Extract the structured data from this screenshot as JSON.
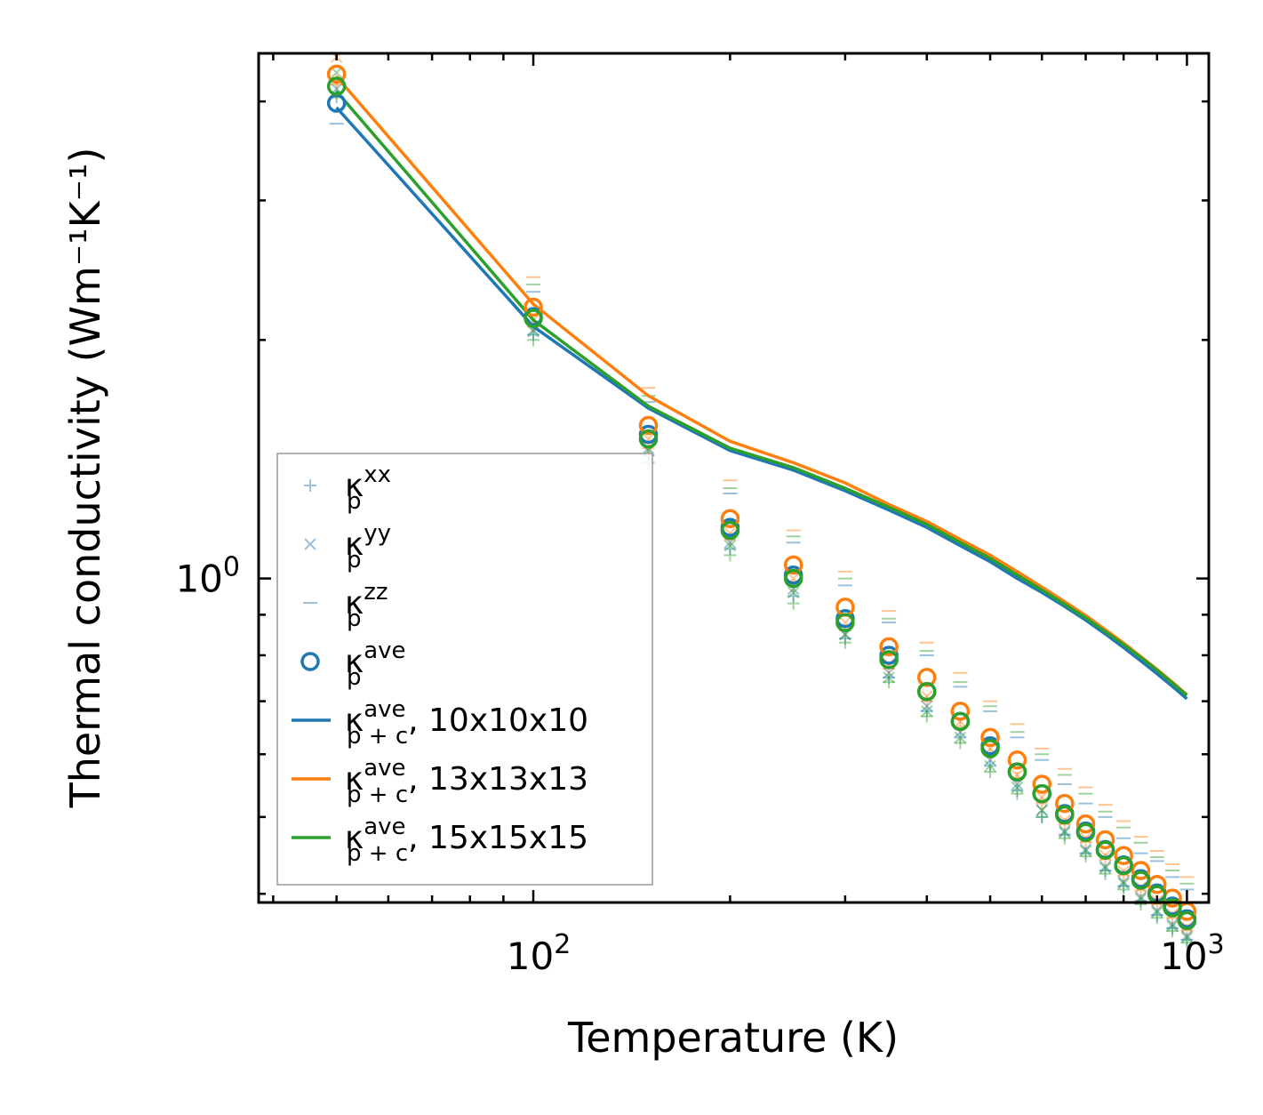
{
  "chart_data": {
    "type": "scatter",
    "title": "",
    "xlabel": "Temperature (K)",
    "ylabel": "Thermal conductivity (Wm⁻¹K⁻¹)",
    "xscale": "log",
    "yscale": "log",
    "xlim": [
      38,
      1080
    ],
    "ylim": [
      0.39,
      4.6
    ],
    "x_ticks": [
      {
        "value": 100,
        "base": "10",
        "exp": "2"
      },
      {
        "value": 1000,
        "base": "10",
        "exp": "3"
      }
    ],
    "y_ticks": [
      {
        "value": 1,
        "base": "10",
        "exp": "0"
      }
    ],
    "grid": false,
    "legend_position": "lower-left",
    "x": [
      50,
      100,
      150,
      200,
      250,
      300,
      350,
      400,
      450,
      500,
      550,
      600,
      650,
      700,
      750,
      800,
      850,
      900,
      950,
      1000
    ],
    "configs": [
      {
        "name": "10x10x10",
        "color": "#1f77b4",
        "kxx": [
          4.05,
          2.03,
          1.43,
          1.09,
          0.95,
          0.84,
          0.75,
          0.68,
          0.63,
          0.58,
          0.54,
          0.5,
          0.475,
          0.45,
          0.428,
          0.409,
          0.392,
          0.376,
          0.362,
          0.35
        ],
        "kyy": [
          4.15,
          2.06,
          1.46,
          1.11,
          0.97,
          0.85,
          0.76,
          0.69,
          0.64,
          0.59,
          0.55,
          0.51,
          0.48,
          0.455,
          0.433,
          0.414,
          0.396,
          0.381,
          0.366,
          0.354
        ],
        "kzz": [
          3.75,
          2.3,
          1.67,
          1.28,
          1.11,
          0.98,
          0.88,
          0.8,
          0.73,
          0.68,
          0.63,
          0.59,
          0.55,
          0.52,
          0.5,
          0.47,
          0.45,
          0.44,
          0.42,
          0.405
        ],
        "kave": [
          3.98,
          2.14,
          1.52,
          1.16,
          1.01,
          0.89,
          0.8,
          0.72,
          0.66,
          0.615,
          0.57,
          0.535,
          0.505,
          0.48,
          0.455,
          0.435,
          0.418,
          0.401,
          0.386,
          0.372
        ],
        "kpc": [
          3.93,
          2.08,
          1.64,
          1.45,
          1.37,
          1.29,
          1.22,
          1.16,
          1.1,
          1.05,
          1.0,
          0.96,
          0.922,
          0.886,
          0.851,
          0.818,
          0.787,
          0.758,
          0.731,
          0.705
        ]
      },
      {
        "name": "13x13x13",
        "color": "#ff7f0e",
        "kxx": [
          4.25,
          2.08,
          1.46,
          1.12,
          0.98,
          0.86,
          0.77,
          0.7,
          0.65,
          0.6,
          0.56,
          0.52,
          0.49,
          0.465,
          0.442,
          0.422,
          0.404,
          0.388,
          0.373,
          0.36
        ],
        "kyy": [
          4.55,
          2.12,
          1.5,
          1.14,
          1.0,
          0.88,
          0.78,
          0.71,
          0.66,
          0.61,
          0.565,
          0.53,
          0.495,
          0.47,
          0.447,
          0.427,
          0.408,
          0.392,
          0.377,
          0.363
        ],
        "kzz": [
          4.2,
          2.4,
          1.74,
          1.33,
          1.15,
          1.02,
          0.91,
          0.83,
          0.76,
          0.7,
          0.655,
          0.61,
          0.575,
          0.545,
          0.518,
          0.494,
          0.472,
          0.453,
          0.436,
          0.42
        ],
        "kave": [
          4.33,
          2.2,
          1.56,
          1.19,
          1.04,
          0.92,
          0.82,
          0.75,
          0.68,
          0.63,
          0.59,
          0.55,
          0.52,
          0.49,
          0.468,
          0.447,
          0.428,
          0.411,
          0.395,
          0.38
        ],
        "kpc": [
          4.3,
          2.22,
          1.7,
          1.49,
          1.4,
          1.32,
          1.24,
          1.18,
          1.12,
          1.07,
          1.02,
          0.975,
          0.935,
          0.898,
          0.862,
          0.829,
          0.797,
          0.768,
          0.74,
          0.713
        ]
      },
      {
        "name": "15x15x15",
        "color": "#2ca02c",
        "kxx": [
          4.1,
          2.0,
          1.4,
          1.07,
          0.93,
          0.83,
          0.74,
          0.67,
          0.62,
          0.57,
          0.535,
          0.5,
          0.47,
          0.446,
          0.424,
          0.405,
          0.388,
          0.373,
          0.359,
          0.347
        ],
        "kyy": [
          4.35,
          2.05,
          1.45,
          1.1,
          0.96,
          0.85,
          0.75,
          0.68,
          0.63,
          0.58,
          0.545,
          0.51,
          0.478,
          0.453,
          0.431,
          0.412,
          0.394,
          0.379,
          0.364,
          0.352
        ],
        "kzz": [
          4.05,
          2.35,
          1.7,
          1.3,
          1.13,
          1.0,
          0.89,
          0.81,
          0.74,
          0.69,
          0.64,
          0.6,
          0.565,
          0.535,
          0.508,
          0.485,
          0.464,
          0.445,
          0.428,
          0.412
        ],
        "kave": [
          4.18,
          2.13,
          1.5,
          1.15,
          1.0,
          0.88,
          0.79,
          0.72,
          0.66,
          0.61,
          0.57,
          0.535,
          0.503,
          0.478,
          0.454,
          0.434,
          0.416,
          0.399,
          0.384,
          0.37
        ],
        "kpc": [
          4.12,
          2.12,
          1.65,
          1.46,
          1.38,
          1.3,
          1.23,
          1.17,
          1.11,
          1.06,
          1.01,
          0.967,
          0.928,
          0.892,
          0.857,
          0.825,
          0.795,
          0.766,
          0.738,
          0.712
        ]
      }
    ],
    "legend": [
      {
        "kind": "plus",
        "symbol": "κ",
        "sub": "p",
        "sup": "xx",
        "suffix": ""
      },
      {
        "kind": "x",
        "symbol": "κ",
        "sub": "p",
        "sup": "yy",
        "suffix": ""
      },
      {
        "kind": "dash",
        "symbol": "κ",
        "sub": "p",
        "sup": "zz",
        "suffix": ""
      },
      {
        "kind": "circle",
        "symbol": "κ",
        "sub": "p",
        "sup": "ave",
        "suffix": ""
      },
      {
        "kind": "line",
        "symbol": "κ",
        "sub": "p + c",
        "sup": "ave",
        "suffix": ", 10x10x10"
      },
      {
        "kind": "line",
        "symbol": "κ",
        "sub": "p + c",
        "sup": "ave",
        "suffix": ", 13x13x13"
      },
      {
        "kind": "line",
        "symbol": "κ",
        "sub": "p + c",
        "sup": "ave",
        "suffix": ", 15x15x15"
      }
    ]
  }
}
